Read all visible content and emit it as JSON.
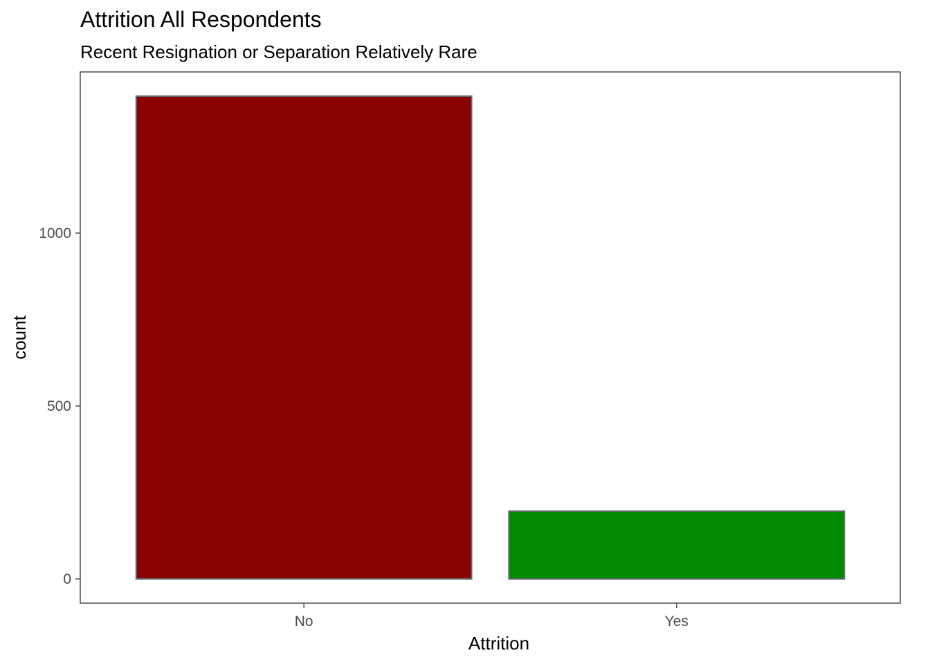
{
  "chart_data": {
    "type": "bar",
    "title": "Attrition All Respondents",
    "subtitle": "Recent Resignation or Separation Relatively Rare",
    "xlabel": "Attrition",
    "ylabel": "count",
    "categories": [
      "No",
      "Yes"
    ],
    "values": [
      1396,
      196
    ],
    "colors": [
      "#8B0000",
      "#008B00"
    ],
    "bar_outline": "#5f6b6d",
    "y_ticks": [
      0,
      500,
      1000
    ],
    "y_tick_labels": [
      "0",
      "500",
      "1000"
    ],
    "ylim": [
      -70,
      1466
    ],
    "grid": false,
    "legend": "none"
  }
}
